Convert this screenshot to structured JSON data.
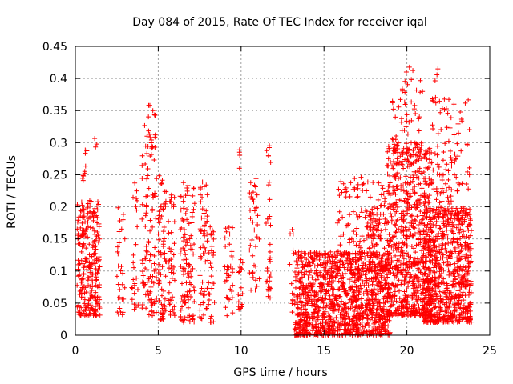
{
  "chart_data": {
    "type": "scatter",
    "title": "Day 084 of 2015, Rate Of TEC Index for receiver iqal",
    "xlabel": "GPS time / hours",
    "ylabel": "ROTI / TECUs",
    "xlim": [
      0,
      24
    ],
    "ylim": [
      0,
      0.45
    ],
    "x_ticks": [
      0,
      5,
      10,
      15,
      20,
      25
    ],
    "x_tick_labels": [
      "0",
      "5",
      "10",
      "15",
      "20",
      "25"
    ],
    "y_ticks": [
      0,
      0.05,
      0.1,
      0.15,
      0.2,
      0.25,
      0.3,
      0.35,
      0.4,
      0.45
    ],
    "y_tick_labels": [
      "0",
      "0.05",
      "0.1",
      "0.15",
      "0.2",
      "0.25",
      "0.3",
      "0.35",
      "0.4",
      "0.45"
    ],
    "grid": true,
    "marker": "plus",
    "color": "#ff0000",
    "clusters": [
      {
        "x": [
          0.1,
          1.5
        ],
        "y": [
          0.03,
          0.21
        ],
        "n": 260
      },
      {
        "x": [
          0.4,
          0.7
        ],
        "y": [
          0.24,
          0.29
        ],
        "n": 10
      },
      {
        "x": [
          1.0,
          1.4
        ],
        "y": [
          0.29,
          0.31
        ],
        "n": 3
      },
      {
        "x": [
          2.5,
          3.0
        ],
        "y": [
          0.03,
          0.2
        ],
        "n": 30
      },
      {
        "x": [
          3.4,
          3.8
        ],
        "y": [
          0.04,
          0.24
        ],
        "n": 25
      },
      {
        "x": [
          4.0,
          4.9
        ],
        "y": [
          0.03,
          0.33
        ],
        "n": 110
      },
      {
        "x": [
          4.4,
          4.9
        ],
        "y": [
          0.34,
          0.36
        ],
        "n": 6
      },
      {
        "x": [
          5.0,
          5.5
        ],
        "y": [
          0.02,
          0.25
        ],
        "n": 70
      },
      {
        "x": [
          5.6,
          6.0
        ],
        "y": [
          0.03,
          0.23
        ],
        "n": 45
      },
      {
        "x": [
          6.3,
          7.2
        ],
        "y": [
          0.02,
          0.24
        ],
        "n": 110
      },
      {
        "x": [
          7.5,
          8.0
        ],
        "y": [
          0.02,
          0.24
        ],
        "n": 55
      },
      {
        "x": [
          8.0,
          8.4
        ],
        "y": [
          0.02,
          0.17
        ],
        "n": 30
      },
      {
        "x": [
          9.0,
          9.5
        ],
        "y": [
          0.03,
          0.18
        ],
        "n": 35
      },
      {
        "x": [
          9.8,
          10.1
        ],
        "y": [
          0.04,
          0.12
        ],
        "n": 20
      },
      {
        "x": [
          9.8,
          10.0
        ],
        "y": [
          0.26,
          0.29
        ],
        "n": 4
      },
      {
        "x": [
          10.5,
          11.1
        ],
        "y": [
          0.07,
          0.26
        ],
        "n": 40
      },
      {
        "x": [
          11.5,
          11.8
        ],
        "y": [
          0.05,
          0.3
        ],
        "n": 35
      },
      {
        "x": [
          12.9,
          13.2
        ],
        "y": [
          0.02,
          0.17
        ],
        "n": 12
      },
      {
        "x": [
          13.2,
          19.0
        ],
        "y": [
          0.0,
          0.13
        ],
        "n": 1150
      },
      {
        "x": [
          15.8,
          18.9
        ],
        "y": [
          0.1,
          0.25
        ],
        "n": 160
      },
      {
        "x": [
          17.5,
          18.5
        ],
        "y": [
          0.15,
          0.2
        ],
        "n": 40
      },
      {
        "x": [
          18.8,
          21.5
        ],
        "y": [
          0.03,
          0.3
        ],
        "n": 700
      },
      {
        "x": [
          19.0,
          21.0
        ],
        "y": [
          0.28,
          0.4
        ],
        "n": 60
      },
      {
        "x": [
          19.5,
          20.4
        ],
        "y": [
          0.39,
          0.43
        ],
        "n": 5
      },
      {
        "x": [
          21.0,
          23.9
        ],
        "y": [
          0.02,
          0.2
        ],
        "n": 700
      },
      {
        "x": [
          21.5,
          23.8
        ],
        "y": [
          0.18,
          0.37
        ],
        "n": 130
      },
      {
        "x": [
          21.7,
          22.2
        ],
        "y": [
          0.37,
          0.42
        ],
        "n": 4
      }
    ]
  }
}
